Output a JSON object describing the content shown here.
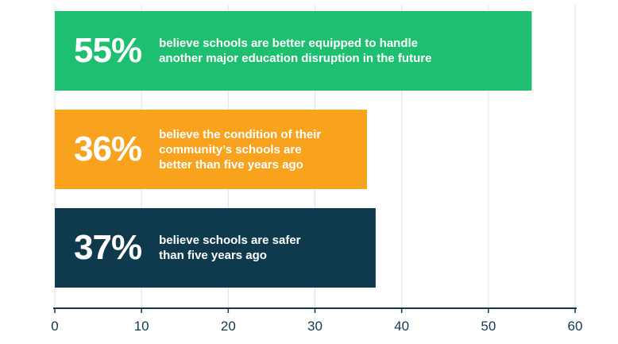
{
  "chart_data": {
    "type": "bar",
    "orientation": "horizontal",
    "categories": [
      "believe schools are better equipped to handle\nanother major education disruption in the future",
      "believe the condition of their\ncommunity’s schools are\nbetter than five years ago",
      "believe schools are safer\nthan five years ago"
    ],
    "values": [
      55,
      36,
      37
    ],
    "value_labels": [
      "55%",
      "36%",
      "37%"
    ],
    "colors": [
      "#1fbf71",
      "#f8a21e",
      "#0f3a4e"
    ],
    "xlim": [
      0,
      60
    ],
    "xticks": [
      0,
      10,
      20,
      30,
      40,
      50,
      60
    ],
    "grid": true
  }
}
